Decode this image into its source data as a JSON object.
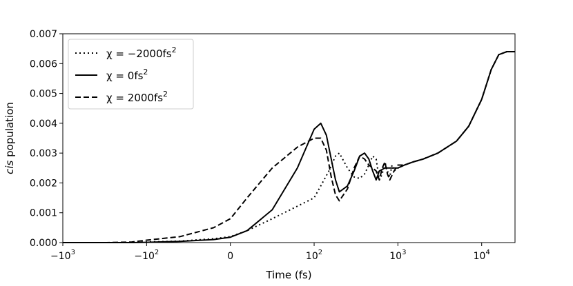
{
  "chart_data": {
    "type": "line",
    "xlabel": "Time (fs)",
    "ylabel_italic": "cis",
    "ylabel_rest": " population",
    "xscale": "symlog",
    "xlinthresh": 100,
    "xlim": [
      -1000,
      25000
    ],
    "ylim": [
      0,
      0.007
    ],
    "yticks": [
      0,
      0.001,
      0.002,
      0.003,
      0.004,
      0.005,
      0.006,
      0.007
    ],
    "ytick_labels": [
      "0.000",
      "0.001",
      "0.002",
      "0.003",
      "0.004",
      "0.005",
      "0.006",
      "0.007"
    ],
    "xticks": [
      {
        "value": -1000,
        "base": "−10",
        "exp": "3"
      },
      {
        "value": -100,
        "base": "−10",
        "exp": "2"
      },
      {
        "value": 0,
        "base": "0",
        "exp": ""
      },
      {
        "value": 100,
        "base": "10",
        "exp": "2"
      },
      {
        "value": 1000,
        "base": "10",
        "exp": "3"
      },
      {
        "value": 10000,
        "base": "10",
        "exp": "4"
      }
    ],
    "grid": false,
    "legend_position": "top-left",
    "series": [
      {
        "legend_main": "χ = −2000fs",
        "legend_sup": "2",
        "dash": "dotted",
        "x": [
          -1000,
          -300,
          -150,
          -100,
          -60,
          -20,
          0,
          20,
          50,
          100,
          120,
          150,
          180,
          200,
          250,
          300,
          350,
          400,
          450,
          500,
          550,
          600,
          650,
          700,
          750,
          800,
          850,
          900,
          1000,
          1200,
          1500,
          2000,
          3000,
          5000,
          7000,
          10000,
          13000,
          16000,
          20000,
          25000
        ],
        "y": [
          0,
          0,
          0,
          2e-05,
          5e-05,
          0.00013,
          0.0002,
          0.0004,
          0.0008,
          0.0015,
          0.0019,
          0.0024,
          0.0029,
          0.003,
          0.0025,
          0.0022,
          0.00215,
          0.0023,
          0.0026,
          0.0029,
          0.0028,
          0.0021,
          0.0023,
          0.0027,
          0.0024,
          0.0022,
          0.0026,
          0.0024,
          0.0025,
          0.0026,
          0.0027,
          0.0028,
          0.003,
          0.0034,
          0.0039,
          0.0048,
          0.0058,
          0.0063,
          0.0064,
          0.0064
        ]
      },
      {
        "legend_main": "χ = 0fs",
        "legend_sup": "2",
        "dash": "solid",
        "x": [
          -1000,
          -300,
          -150,
          -100,
          -60,
          -20,
          0,
          20,
          50,
          80,
          100,
          120,
          140,
          160,
          180,
          200,
          250,
          300,
          350,
          400,
          450,
          500,
          550,
          600,
          700,
          800,
          900,
          1000,
          1200,
          1500,
          2000,
          3000,
          5000,
          7000,
          10000,
          13000,
          16000,
          20000,
          25000
        ],
        "y": [
          0,
          0,
          0,
          1e-05,
          4e-05,
          0.0001,
          0.00018,
          0.0004,
          0.0011,
          0.0025,
          0.0038,
          0.004,
          0.0036,
          0.0028,
          0.0021,
          0.0017,
          0.0019,
          0.0024,
          0.0029,
          0.003,
          0.0028,
          0.0024,
          0.0021,
          0.0024,
          0.0025,
          0.0025,
          0.0025,
          0.0025,
          0.0026,
          0.0027,
          0.0028,
          0.003,
          0.0034,
          0.0039,
          0.0048,
          0.0058,
          0.0063,
          0.0064,
          0.0064
        ]
      },
      {
        "legend_main": "χ = 2000fs",
        "legend_sup": "2",
        "dash": "dashed",
        "x": [
          -1000,
          -300,
          -150,
          -100,
          -60,
          -20,
          0,
          20,
          50,
          80,
          100,
          120,
          140,
          160,
          180,
          200,
          250,
          300,
          350,
          400,
          450,
          500,
          550,
          600,
          650,
          700,
          750,
          800,
          900,
          1000,
          1200,
          1500,
          2000,
          3000,
          5000,
          7000,
          10000,
          13000,
          16000,
          20000,
          25000
        ],
        "y": [
          0,
          0,
          2e-05,
          8e-05,
          0.0002,
          0.0005,
          0.0008,
          0.0015,
          0.0025,
          0.0032,
          0.0035,
          0.0035,
          0.0031,
          0.0022,
          0.0016,
          0.0014,
          0.0018,
          0.0025,
          0.0029,
          0.0028,
          0.0026,
          0.0025,
          0.0024,
          0.0021,
          0.0025,
          0.0027,
          0.0023,
          0.0021,
          0.0024,
          0.0026,
          0.0026,
          0.0027,
          0.0028,
          0.003,
          0.0034,
          0.0039,
          0.0048,
          0.0058,
          0.0063,
          0.0064,
          0.0064
        ]
      }
    ]
  }
}
